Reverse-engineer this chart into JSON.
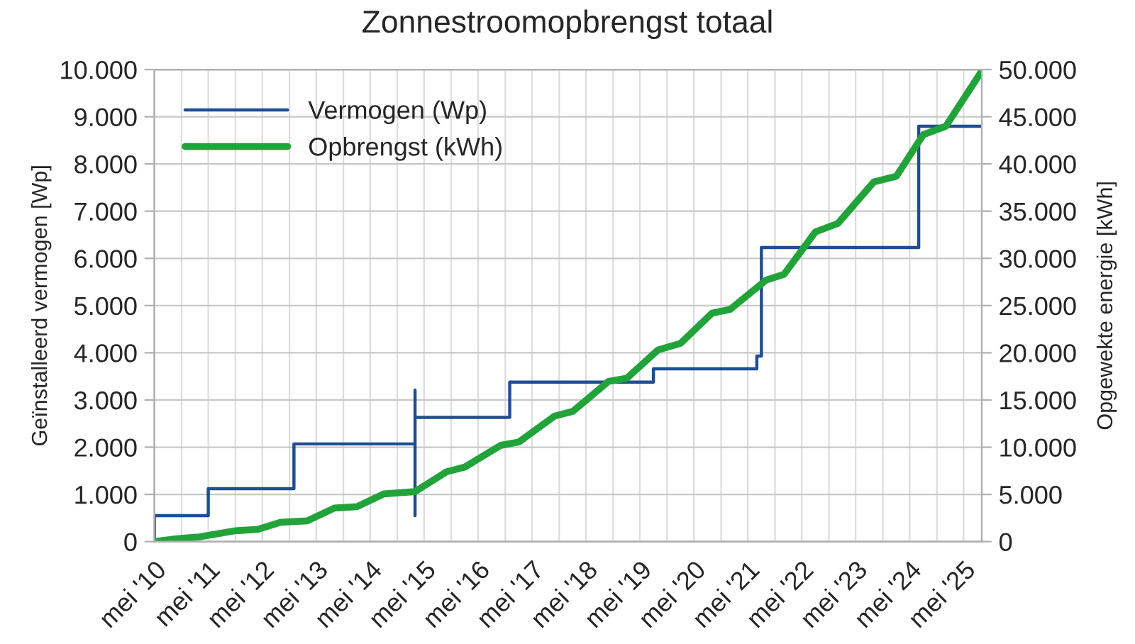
{
  "chart_data": {
    "type": "line",
    "title": "Zonnestroomopbrengst totaal",
    "ylabel": "Geïnstalleerd vermogen [Wp]",
    "y2label": "Opgewekte energie [kWh]",
    "series": [
      {
        "name": "Vermogen (Wp)",
        "type": "step",
        "color": "#1f4e91",
        "x": [
          "2010-05",
          "2010-05",
          "2011-05",
          "2012-12",
          "2015-03",
          "2015-03",
          "2015-03",
          "2016-12",
          "2019-08",
          "2021-07",
          "2021-08",
          "2024-07",
          "2025-09"
        ],
        "values": [
          0,
          550,
          1120,
          2070,
          550,
          3210,
          2630,
          3380,
          3660,
          3930,
          6230,
          8800,
          8800
        ]
      },
      {
        "name": "Opbrengst (kWh)",
        "axis": "y2",
        "color": "#22a33a",
        "x": [
          "2010-05",
          "2010-10",
          "2011-03",
          "2011-11",
          "2012-04",
          "2012-09",
          "2013-03",
          "2013-09",
          "2014-02",
          "2014-08",
          "2015-03",
          "2015-10",
          "2016-02",
          "2016-10",
          "2017-02",
          "2017-10",
          "2018-02",
          "2018-10",
          "2019-02",
          "2019-09",
          "2020-02",
          "2020-09",
          "2021-01",
          "2021-09",
          "2022-01",
          "2022-08",
          "2023-01",
          "2023-09",
          "2024-02",
          "2024-08",
          "2025-01",
          "2025-09"
        ],
        "values": [
          0,
          300,
          500,
          1150,
          1300,
          2050,
          2200,
          3550,
          3700,
          5050,
          5300,
          7400,
          7900,
          10200,
          10550,
          13300,
          13800,
          16970,
          17300,
          20300,
          21000,
          24200,
          24600,
          27700,
          28300,
          32800,
          33700,
          38100,
          38700,
          43100,
          44000,
          49850
        ]
      }
    ],
    "xlim": [
      "2010-05",
      "2025-09"
    ],
    "xticks": [
      {
        "value": "2010-05",
        "label": "mei '10"
      },
      {
        "value": "2010-11",
        "label": null
      },
      {
        "value": "2011-05",
        "label": "mei '11"
      },
      {
        "value": "2011-11",
        "label": null
      },
      {
        "value": "2012-05",
        "label": "mei '12"
      },
      {
        "value": "2012-11",
        "label": null
      },
      {
        "value": "2013-05",
        "label": "mei '13"
      },
      {
        "value": "2013-11",
        "label": null
      },
      {
        "value": "2014-05",
        "label": "mei '14"
      },
      {
        "value": "2014-11",
        "label": null
      },
      {
        "value": "2015-05",
        "label": "mei '15"
      },
      {
        "value": "2015-11",
        "label": null
      },
      {
        "value": "2016-05",
        "label": "mei '16"
      },
      {
        "value": "2016-11",
        "label": null
      },
      {
        "value": "2017-05",
        "label": "mei '17"
      },
      {
        "value": "2017-11",
        "label": null
      },
      {
        "value": "2018-05",
        "label": "mei '18"
      },
      {
        "value": "2018-11",
        "label": null
      },
      {
        "value": "2019-05",
        "label": "mei '19"
      },
      {
        "value": "2019-11",
        "label": null
      },
      {
        "value": "2020-05",
        "label": "mei '20"
      },
      {
        "value": "2020-11",
        "label": null
      },
      {
        "value": "2021-05",
        "label": "mei '21"
      },
      {
        "value": "2021-11",
        "label": null
      },
      {
        "value": "2022-05",
        "label": "mei '22"
      },
      {
        "value": "2022-11",
        "label": null
      },
      {
        "value": "2023-05",
        "label": "mei '23"
      },
      {
        "value": "2023-11",
        "label": null
      },
      {
        "value": "2024-05",
        "label": "mei '24"
      },
      {
        "value": "2024-11",
        "label": null
      },
      {
        "value": "2025-05",
        "label": "mei '25"
      }
    ],
    "ylim": [
      0,
      10000
    ],
    "yticks": [
      0,
      {
        "value": 1000,
        "label": "1.000"
      },
      {
        "value": 2000,
        "label": "2.000"
      },
      {
        "value": 3000,
        "label": "3.000"
      },
      {
        "value": 4000,
        "label": "4.000"
      },
      {
        "value": 5000,
        "label": "5.000"
      },
      {
        "value": 6000,
        "label": "6.000"
      },
      {
        "value": 7000,
        "label": "7.000"
      },
      {
        "value": 8000,
        "label": "8.000"
      },
      {
        "value": 9000,
        "label": "9.000"
      },
      {
        "value": 10000,
        "label": "10.000"
      }
    ],
    "y2lim": [
      0,
      50000
    ],
    "y2ticks": [
      0,
      {
        "value": 5000,
        "label": "5.000"
      },
      {
        "value": 10000,
        "label": "10.000"
      },
      {
        "value": 15000,
        "label": "15.000"
      },
      {
        "value": 20000,
        "label": "20.000"
      },
      {
        "value": 25000,
        "label": "25.000"
      },
      {
        "value": 30000,
        "label": "30.000"
      },
      {
        "value": 35000,
        "label": "35.000"
      },
      {
        "value": 40000,
        "label": "40.000"
      },
      {
        "value": 45000,
        "label": "45.000"
      },
      {
        "value": 50000,
        "label": "50.000"
      }
    ],
    "grid": true,
    "legend": "top left",
    "marker": "none",
    "line_style": "solid"
  }
}
